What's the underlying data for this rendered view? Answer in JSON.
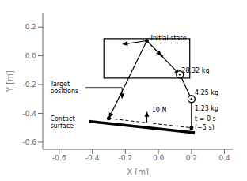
{
  "chart_data": {
    "type": "scatter",
    "xlabel": "X [m]",
    "ylabel": "Y [m]",
    "xlim": [
      -0.7,
      0.45
    ],
    "ylim": [
      -0.65,
      0.3
    ],
    "xticks": [
      -0.6,
      -0.4,
      -0.2,
      {
        "value": 0,
        "label": "0.0"
      },
      0.2,
      0.4
    ],
    "yticks": [
      -0.6,
      -0.4,
      -0.2,
      {
        "value": 0,
        "label": "0.0"
      },
      0.2
    ],
    "grid": false,
    "color": "#000000",
    "series": [
      {
        "type": "scatter",
        "marker": "circle",
        "x": [
          -0.07,
          0.2,
          -0.3
        ],
        "y": [
          0.105,
          -0.5,
          -0.435
        ]
      },
      {
        "type": "scatter",
        "marker": "dot",
        "x": [
          0.02
        ],
        "y": [
          0.0
        ]
      },
      {
        "type": "scatter",
        "marker": "target",
        "x": [
          0.13,
          0.2
        ],
        "y": [
          -0.13,
          -0.3
        ]
      },
      {
        "type": "arrow",
        "line_style": "solid",
        "x": [
          -0.07,
          -0.22
        ],
        "y": [
          0.105,
          0.08
        ]
      },
      {
        "type": "arrow",
        "line_style": "dashed",
        "x": [
          -0.07,
          0.02
        ],
        "y": [
          0.105,
          0.0
        ]
      },
      {
        "type": "arrow",
        "line_style": "solid",
        "x": [
          -0.07,
          0.13
        ],
        "y": [
          0.105,
          -0.13
        ]
      },
      {
        "type": "line",
        "line_style": "solid",
        "x": [
          0.13,
          0.2,
          0.2
        ],
        "y": [
          -0.13,
          -0.3,
          -0.5
        ]
      },
      {
        "type": "arrow",
        "line_style": "solid",
        "x": [
          -0.07,
          -0.3
        ],
        "y": [
          0.105,
          -0.435
        ]
      },
      {
        "type": "line",
        "line_style": "dashed",
        "x": [
          -0.3,
          0.2
        ],
        "y": [
          -0.435,
          -0.5
        ]
      },
      {
        "type": "arrow",
        "line_style": "solid",
        "x": [
          -0.07,
          -0.07
        ],
        "y": [
          -0.465,
          -0.385
        ]
      },
      {
        "type": "surface",
        "line_style": "solid",
        "x": [
          -0.42,
          0.22
        ],
        "y": [
          -0.455,
          -0.535
        ]
      }
    ],
    "rectangles": [
      {
        "x": [
          -0.33,
          0.19
        ],
        "y": [
          -0.155,
          0.12
        ],
        "label": "Initial state",
        "label_x": 0.17,
        "label_y": 0.14
      }
    ],
    "annotations": [
      {
        "text": "28.32 kg",
        "x": 0.14,
        "y": -0.1
      },
      {
        "text": "4.25 kg",
        "x": 0.22,
        "y": -0.255
      },
      {
        "text": "1.23 kg",
        "x": 0.22,
        "y": -0.365
      },
      {
        "text": "t = 0 s",
        "x": 0.22,
        "y": -0.435
      },
      {
        "text": "(−5 s)",
        "x": 0.22,
        "y": -0.495
      },
      {
        "text": "10 N",
        "x": -0.04,
        "y": -0.375
      },
      {
        "text": "Target\npositions",
        "x": -0.655,
        "y": -0.22,
        "arrow_x": -0.22,
        "arrow_y": -0.3
      },
      {
        "text": "Contact\nsurface",
        "x": -0.655,
        "y": -0.46
      }
    ]
  }
}
